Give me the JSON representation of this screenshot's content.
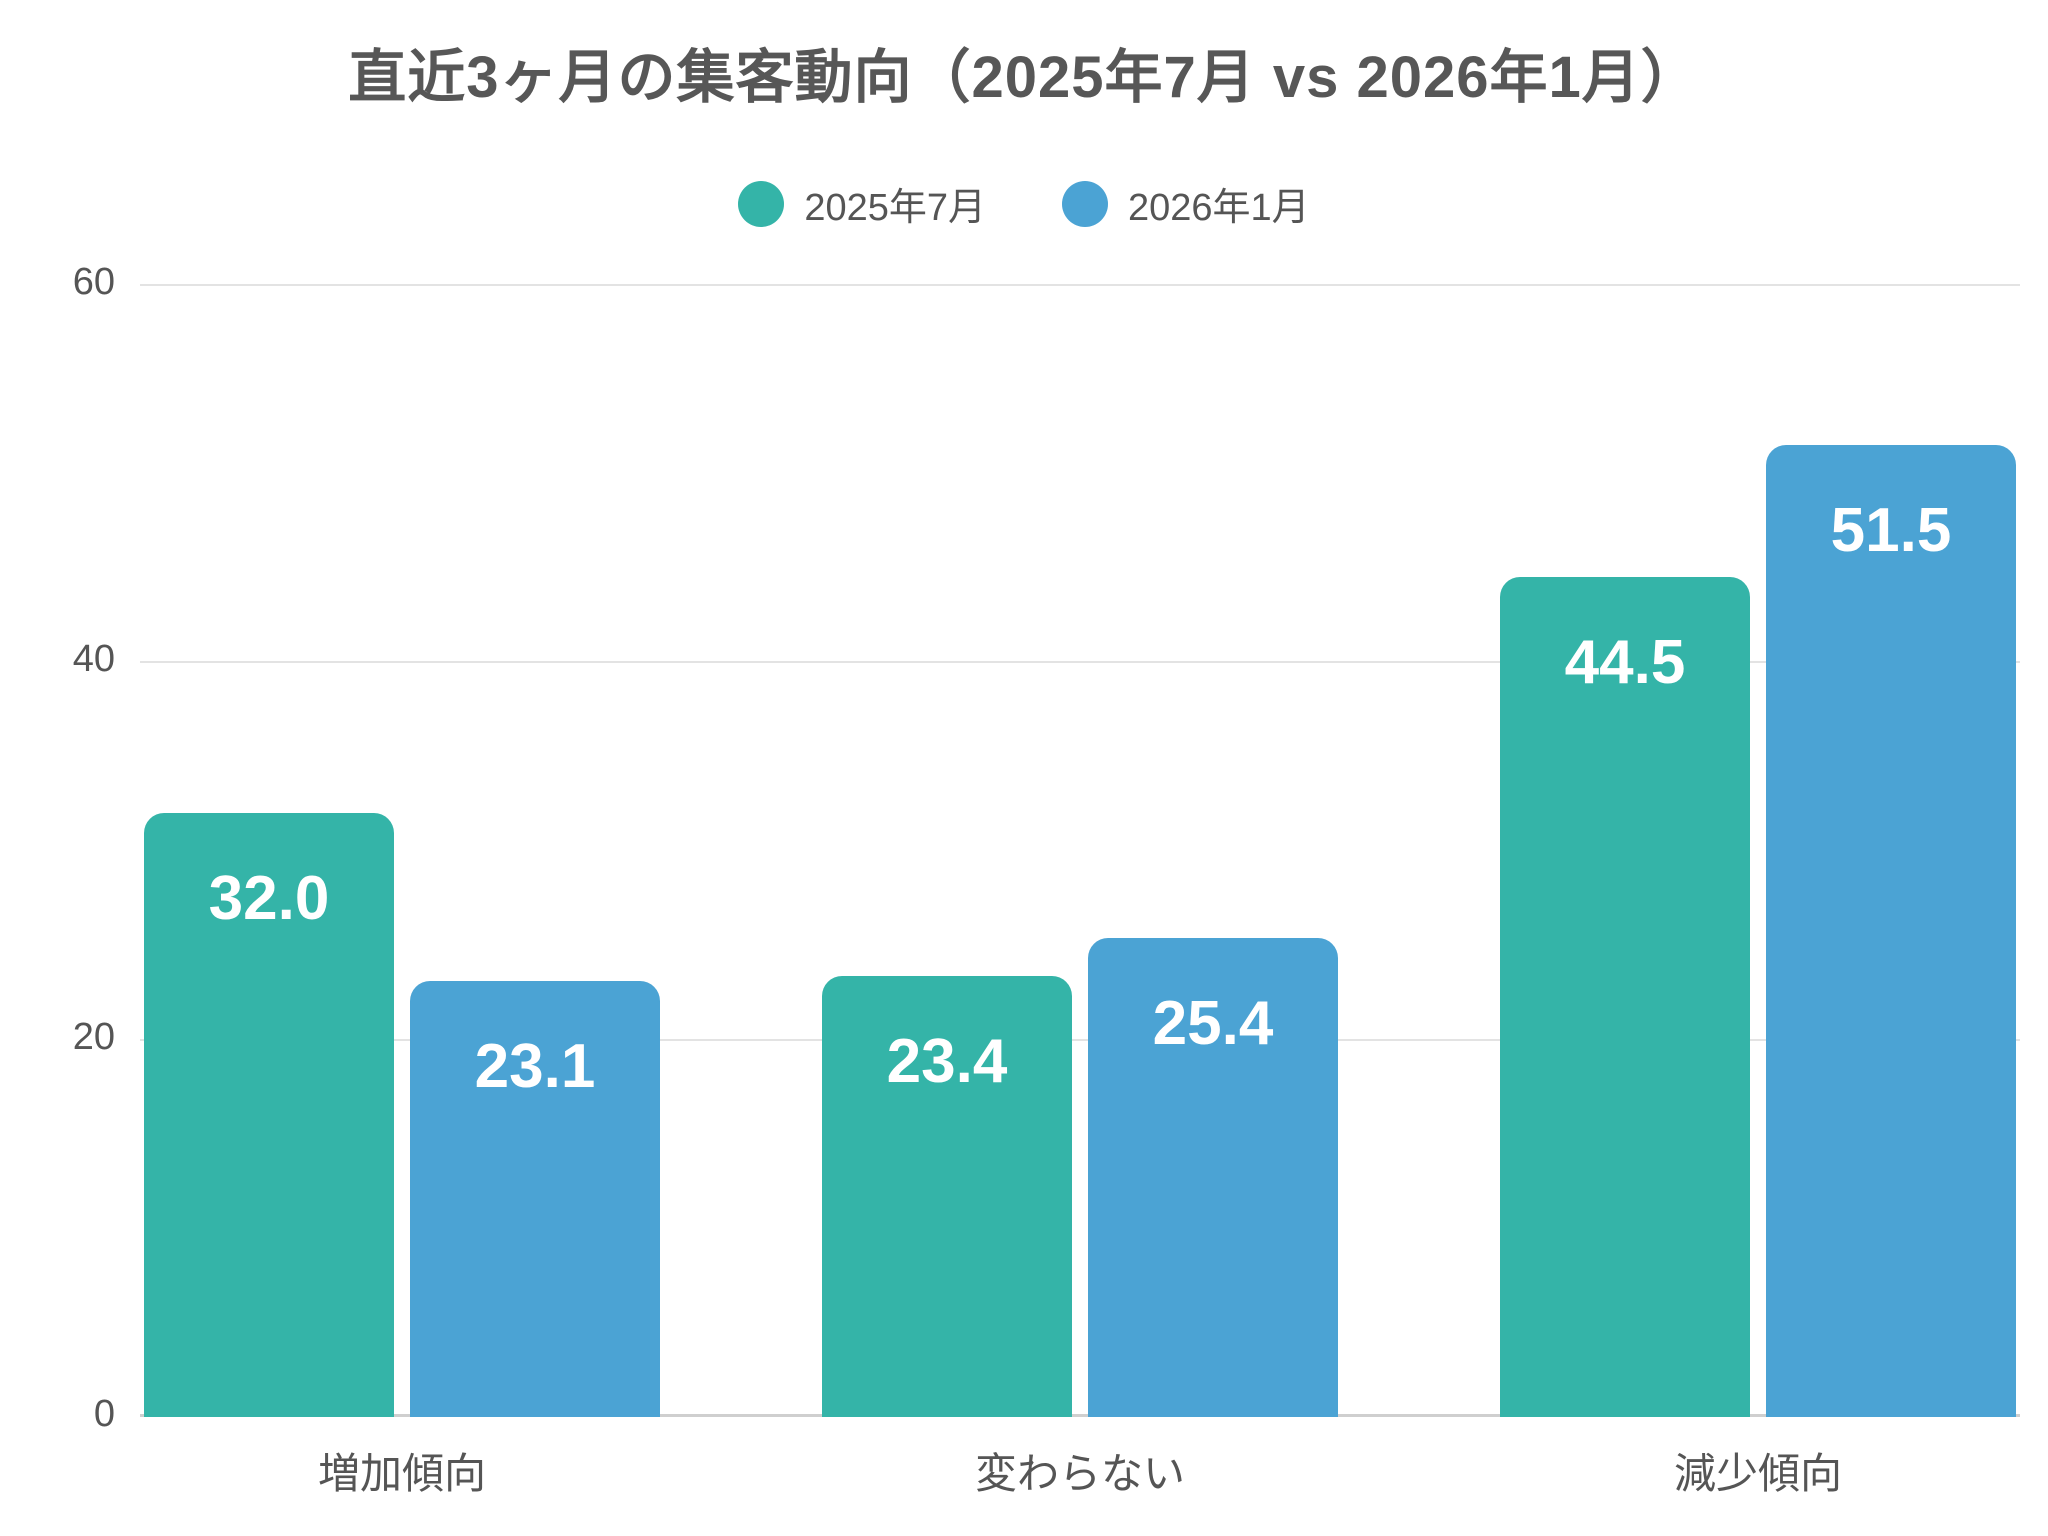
{
  "chart_data": {
    "type": "bar",
    "title": "直近3ヶ月の集客動向（2025年7月 vs 2026年1月）",
    "categories": [
      "増加傾向",
      "変わらない",
      "減少傾向"
    ],
    "series": [
      {
        "name": "2025年7月",
        "color": "#34b4a8",
        "values": [
          32.0,
          23.4,
          44.5
        ]
      },
      {
        "name": "2026年1月",
        "color": "#4ba3d4",
        "values": [
          23.1,
          25.4,
          51.5
        ]
      }
    ],
    "value_label_format": "one-decimal",
    "value_labels_position": "inside-top",
    "y_ticks": [
      0,
      20,
      40,
      60
    ],
    "ylim": [
      0,
      60
    ],
    "xlabel": "",
    "ylabel": "",
    "grid": "horizontal",
    "legend_position": "top-center",
    "theme": {
      "background": "#ffffff",
      "title_color": "#575757",
      "axis_text_color": "#555555",
      "gridline_color": "#e3e3e3",
      "baseline_color": "#cfcfcf",
      "value_label_color": "#ffffff"
    }
  }
}
